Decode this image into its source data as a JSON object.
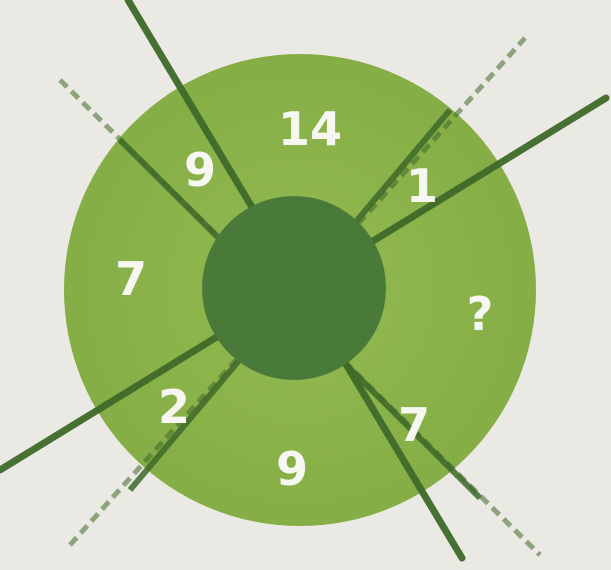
{
  "puzzle": {
    "colors": {
      "background": "#ebe9e4",
      "wheel_fill": "#8bb34a",
      "hub_fill": "#4a7a3a",
      "divider_lines": "#3f6a2a",
      "number_text": "#f7f7f2"
    },
    "segments": {
      "top": "14",
      "top_right": "1",
      "right": "?",
      "bottom_right": "7",
      "bottom": "9",
      "bottom_left": "2",
      "left": "7",
      "top_left": "9"
    }
  }
}
